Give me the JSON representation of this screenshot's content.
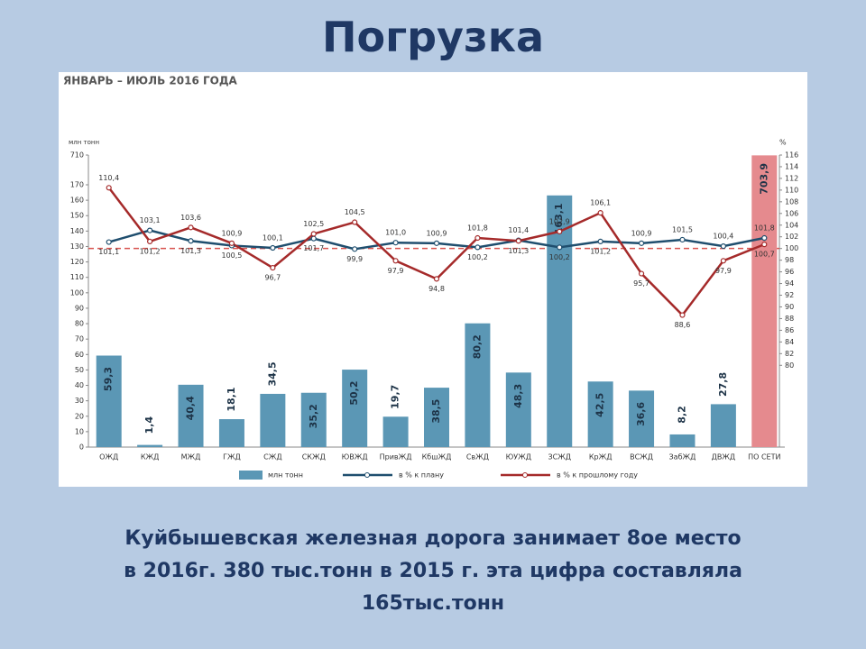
{
  "slide": {
    "title": "Погрузка",
    "caption_lines": [
      "Куйбышевская железная дорога занимает 8ое место",
      "в 2016г. 380 тыс.тонн в 2015 г. эта цифра составляла",
      "165тыс.тонн"
    ]
  },
  "chart_data": {
    "type": "bar_line",
    "title": "ЯНВАРЬ – ИЮЛЬ 2016 ГОДА",
    "y_unit": "млн тонн",
    "y2_unit": "%",
    "categories": [
      "ОЖД",
      "КЖД",
      "МЖД",
      "ГЖД",
      "СЖД",
      "СКЖД",
      "ЮВЖД",
      "ПривЖД",
      "КбшЖД",
      "СвЖД",
      "ЮУЖД",
      "ЗСЖД",
      "КрЖД",
      "ВСЖД",
      "ЗабЖД",
      "ДВЖД",
      "ПО СЕТИ"
    ],
    "series": [
      {
        "name": "млн тонн",
        "kind": "bar",
        "colors": [
          "#5b97b5",
          "#5b97b5",
          "#5b97b5",
          "#5b97b5",
          "#5b97b5",
          "#5b97b5",
          "#5b97b5",
          "#5b97b5",
          "#5b97b5",
          "#5b97b5",
          "#5b97b5",
          "#5b97b5",
          "#5b97b5",
          "#5b97b5",
          "#5b97b5",
          "#5b97b5",
          "#e58a8e"
        ],
        "values": [
          59.3,
          1.4,
          40.4,
          18.1,
          34.5,
          35.2,
          50.2,
          19.7,
          38.5,
          80.2,
          48.3,
          163.1,
          42.5,
          36.6,
          8.2,
          27.8,
          703.9
        ],
        "value_labels": [
          "59,3",
          "1,4",
          "40,4",
          "18,1",
          "34,5",
          "35,2",
          "50,2",
          "19,7",
          "38,5",
          "80,2",
          "48,3",
          "163,1",
          "42,5",
          "36,6",
          "8,2",
          "27,8",
          "703,9"
        ]
      },
      {
        "name": "в % к плану",
        "kind": "line",
        "axis": "y2",
        "color": "#1f4e6e",
        "values": [
          101.1,
          103.1,
          101.3,
          100.5,
          100.1,
          101.7,
          99.9,
          101.0,
          100.9,
          100.2,
          101.4,
          100.2,
          101.2,
          100.9,
          101.5,
          100.4,
          101.8
        ],
        "value_labels": [
          "101,1",
          "103,1",
          "101,3",
          "100,5",
          "100,1",
          "101,7",
          "99,9",
          "101,0",
          "100,9",
          "100,2",
          "101,4",
          "100,2",
          "101,2",
          "100,9",
          "101,5",
          "100,4",
          "101,8"
        ]
      },
      {
        "name": "в % к прошлому году",
        "kind": "line",
        "axis": "y2",
        "color": "#a52a2a",
        "values": [
          110.4,
          101.2,
          103.6,
          100.9,
          96.7,
          102.5,
          104.5,
          97.9,
          94.8,
          101.8,
          101.3,
          102.9,
          106.1,
          95.7,
          88.6,
          97.9,
          100.7
        ],
        "value_labels": [
          "110,4",
          "101,2",
          "103,6",
          "100,9",
          "96,7",
          "102,5",
          "104,5",
          "97,9",
          "94,8",
          "101,8",
          "101,3",
          "102,9",
          "106,1",
          "95,7",
          "88,6",
          "97,9",
          "100,7"
        ]
      }
    ],
    "ylim": [
      0,
      710
    ],
    "yticks": [
      0,
      10,
      20,
      30,
      40,
      50,
      60,
      70,
      80,
      90,
      100,
      110,
      120,
      130,
      140,
      150,
      160,
      170,
      710
    ],
    "y_axis_break": true,
    "y2lim": [
      66,
      116
    ],
    "y2ticks": [
      80,
      82,
      84,
      86,
      88,
      90,
      92,
      94,
      96,
      98,
      100,
      102,
      104,
      106,
      108,
      110,
      112,
      114,
      116
    ],
    "y2_reference": 100,
    "reference_color": "#d9534f"
  }
}
